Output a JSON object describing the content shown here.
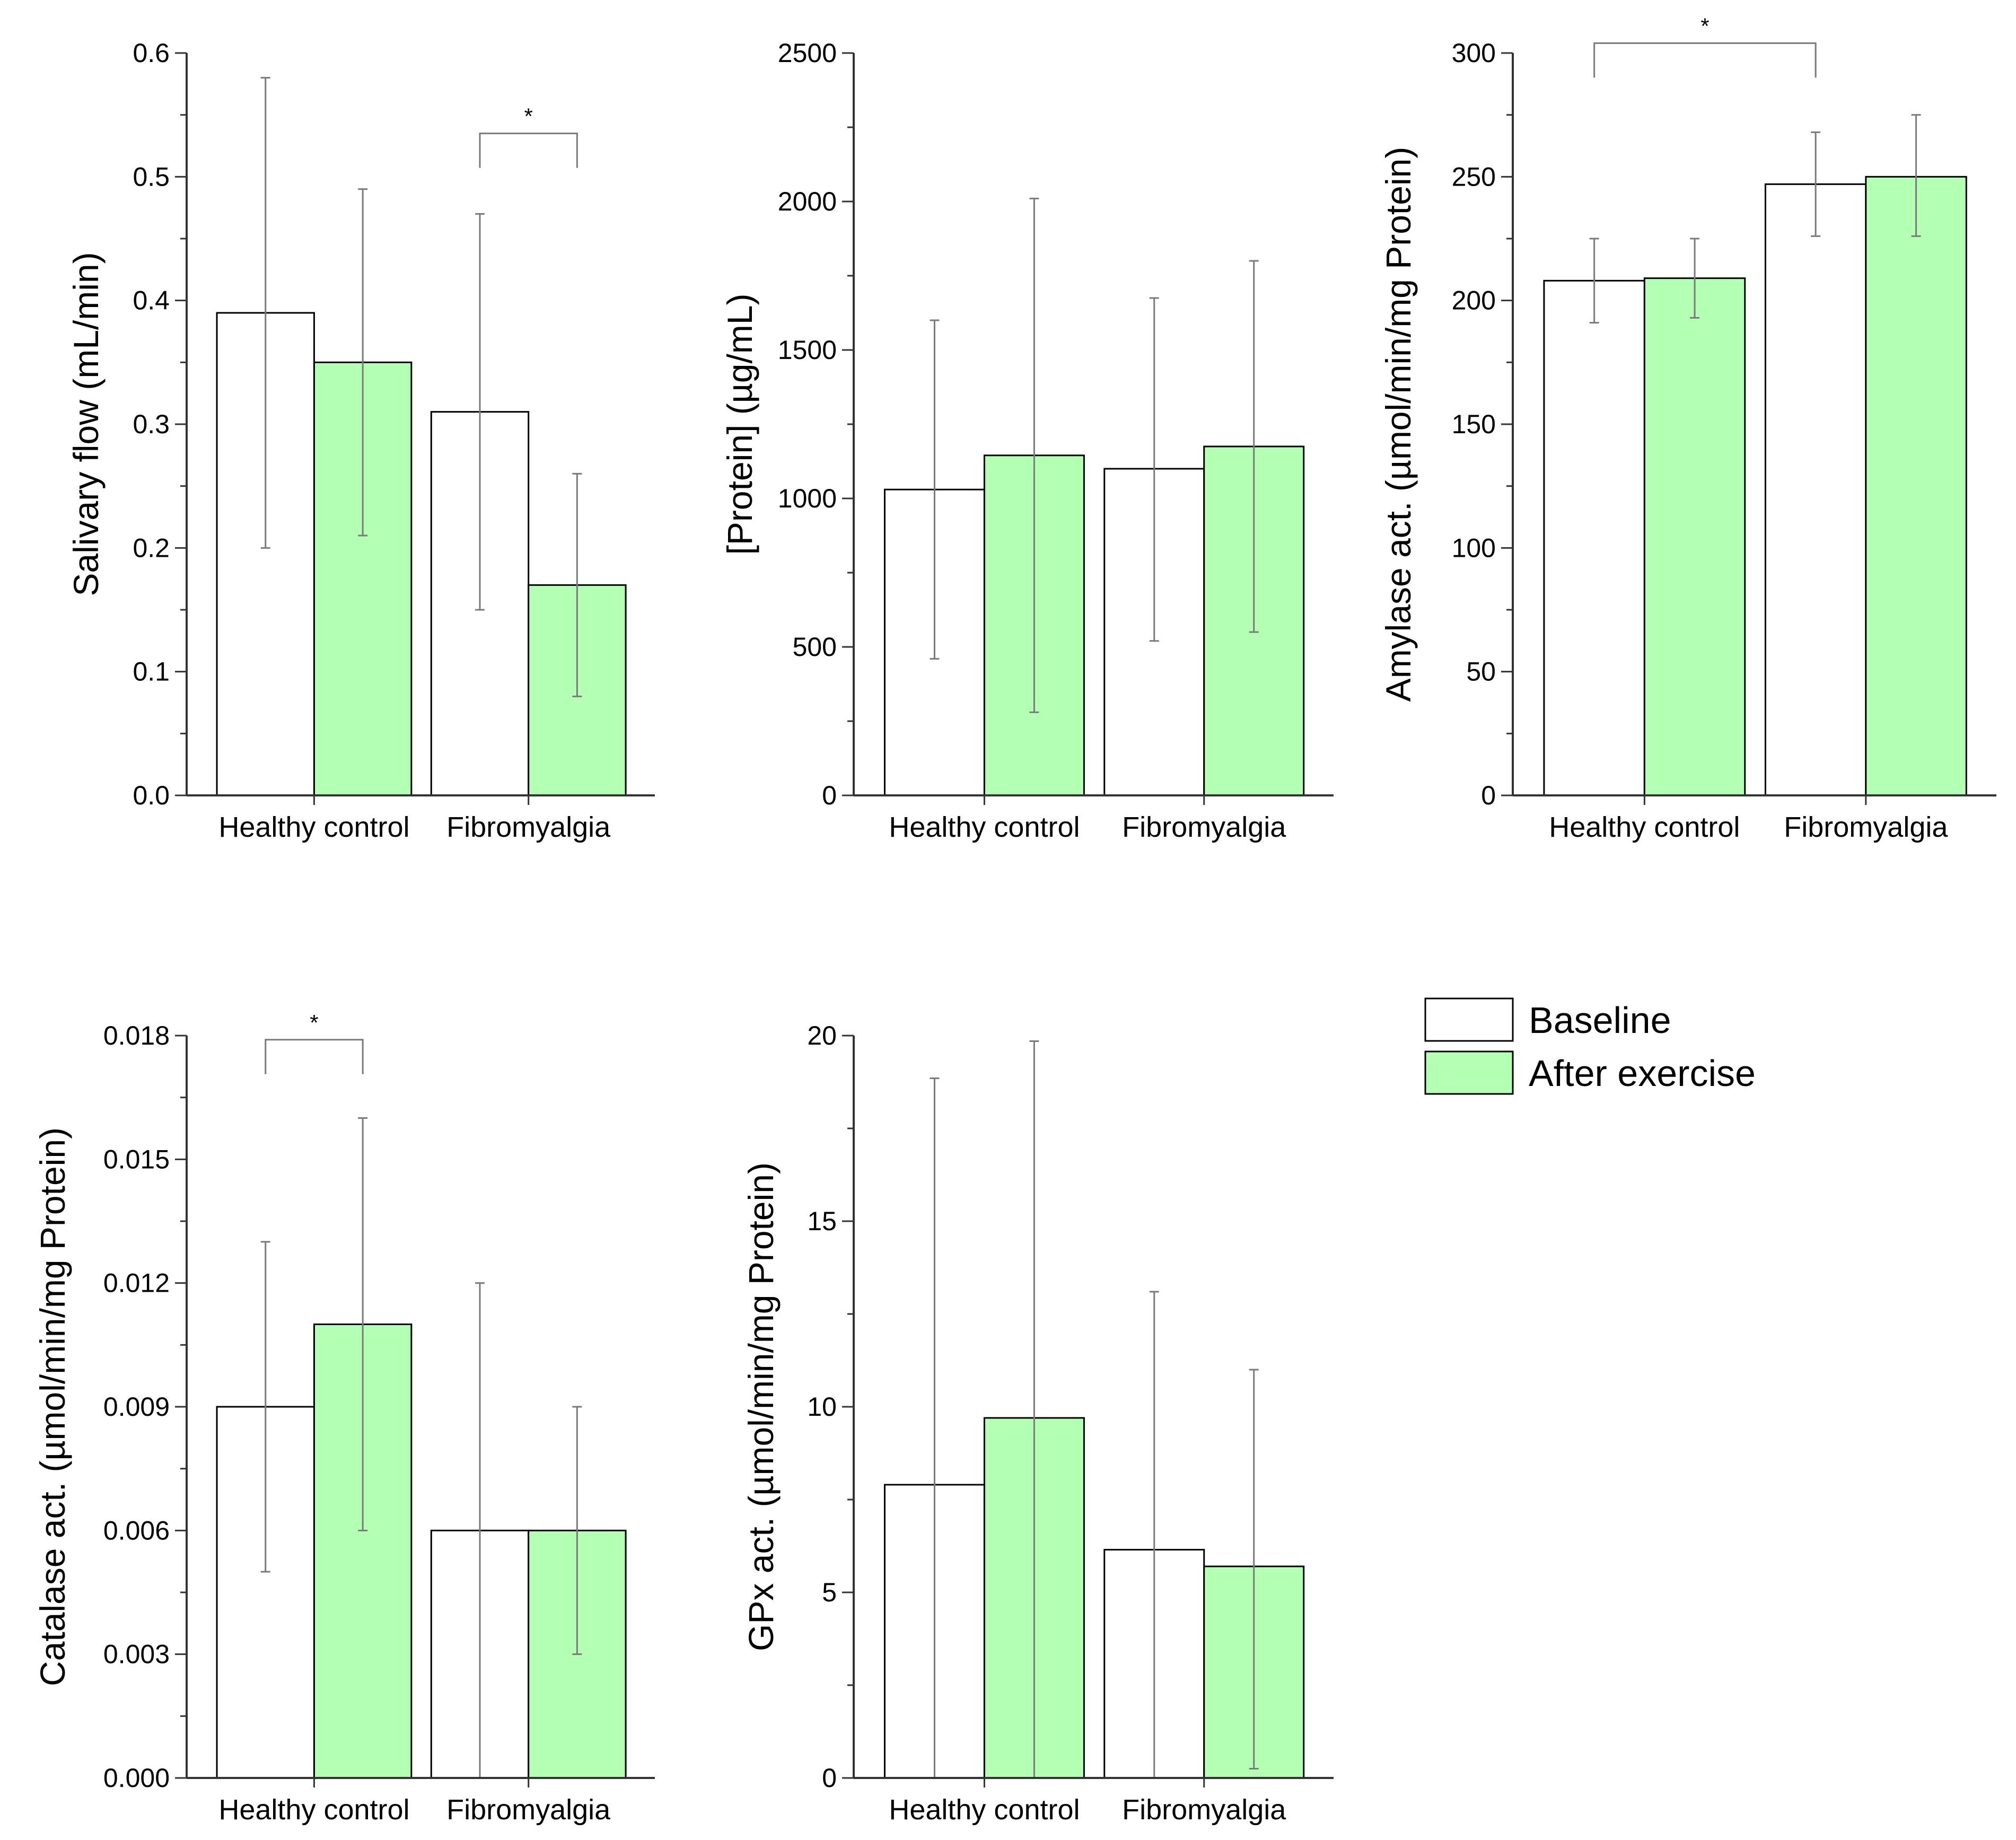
{
  "colors": {
    "baseline": "#ffffff",
    "after_exercise": "#b3ffb3",
    "error_bar": "#7a7a7a",
    "axis": "#333333"
  },
  "legend": {
    "position": "bottom-right",
    "entries": [
      {
        "label": "Baseline",
        "color": "#ffffff"
      },
      {
        "label": "After exercise",
        "color": "#b3ffb3"
      }
    ]
  },
  "chart_data": [
    {
      "type": "bar",
      "ylabel": "Salivary flow (mL/min)",
      "categories": [
        "Healthy control",
        "Fibromyalgia"
      ],
      "ylim": [
        0,
        0.6
      ],
      "yticks": [
        "0.0",
        "0.1",
        "0.2",
        "0.3",
        "0.4",
        "0.5",
        "0.6"
      ],
      "series": [
        {
          "name": "Baseline",
          "values": [
            0.39,
            0.31
          ],
          "err_low": [
            0.2,
            0.15
          ],
          "err_high": [
            0.58,
            0.47
          ]
        },
        {
          "name": "After exercise",
          "values": [
            0.35,
            0.17
          ],
          "err_low": [
            0.21,
            0.08
          ],
          "err_high": [
            0.49,
            0.26
          ]
        }
      ],
      "annotations": [
        {
          "text": "*",
          "from": [
            1,
            0
          ],
          "to": [
            1,
            1
          ],
          "y": 0.535
        }
      ]
    },
    {
      "type": "bar",
      "ylabel": "[Protein] (µg/mL)",
      "categories": [
        "Healthy control",
        "Fibromyalgia"
      ],
      "ylim": [
        0,
        2500
      ],
      "yticks": [
        "0",
        "500",
        "1000",
        "1500",
        "2000",
        "2500"
      ],
      "series": [
        {
          "name": "Baseline",
          "values": [
            1030,
            1100
          ],
          "err_low": [
            460,
            520
          ],
          "err_high": [
            1600,
            1675
          ]
        },
        {
          "name": "After exercise",
          "values": [
            1145,
            1175
          ],
          "err_low": [
            280,
            550
          ],
          "err_high": [
            2010,
            1800
          ]
        }
      ],
      "annotations": []
    },
    {
      "type": "bar",
      "ylabel": "Amylase act. (µmol/min/mg Protein)",
      "categories": [
        "Healthy control",
        "Fibromyalgia"
      ],
      "ylim": [
        0,
        300
      ],
      "yticks": [
        "0",
        "50",
        "100",
        "150",
        "200",
        "250",
        "300"
      ],
      "series": [
        {
          "name": "Baseline",
          "values": [
            208,
            247
          ],
          "err_low": [
            191,
            226
          ],
          "err_high": [
            225,
            268
          ]
        },
        {
          "name": "After exercise",
          "values": [
            209,
            250
          ],
          "err_low": [
            193,
            226
          ],
          "err_high": [
            225,
            275
          ]
        }
      ],
      "annotations": [
        {
          "text": "*",
          "from": [
            0,
            0
          ],
          "to": [
            1,
            0
          ],
          "y": 304
        }
      ]
    },
    {
      "type": "bar",
      "ylabel": "Catalase act. (µmol/min/mg Protein)",
      "categories": [
        "Healthy control",
        "Fibromyalgia"
      ],
      "ylim": [
        0,
        0.018
      ],
      "yticks": [
        "0.000",
        "0.003",
        "0.006",
        "0.009",
        "0.012",
        "0.015",
        "0.018"
      ],
      "series": [
        {
          "name": "Baseline",
          "values": [
            0.009,
            0.006
          ],
          "err_low": [
            0.005,
            0.0
          ],
          "err_high": [
            0.013,
            0.012
          ]
        },
        {
          "name": "After exercise",
          "values": [
            0.011,
            0.006
          ],
          "err_low": [
            0.006,
            0.003
          ],
          "err_high": [
            0.016,
            0.009
          ]
        }
      ],
      "annotations": [
        {
          "text": "*",
          "from": [
            0,
            0
          ],
          "to": [
            0,
            1
          ],
          "y": 0.0179
        }
      ]
    },
    {
      "type": "bar",
      "ylabel": "GPx act. (µmol/min/mg Protein)",
      "categories": [
        "Healthy control",
        "Fibromyalgia"
      ],
      "ylim": [
        0,
        20
      ],
      "yticks": [
        "0",
        "5",
        "10",
        "15",
        "20"
      ],
      "series": [
        {
          "name": "Baseline",
          "values": [
            7.9,
            6.15
          ],
          "err_low": [
            0.0,
            0.0
          ],
          "err_high": [
            18.85,
            13.1
          ]
        },
        {
          "name": "After exercise",
          "values": [
            9.7,
            5.7
          ],
          "err_low": [
            0.0,
            0.25
          ],
          "err_high": [
            19.85,
            11.0
          ]
        }
      ],
      "annotations": []
    }
  ]
}
